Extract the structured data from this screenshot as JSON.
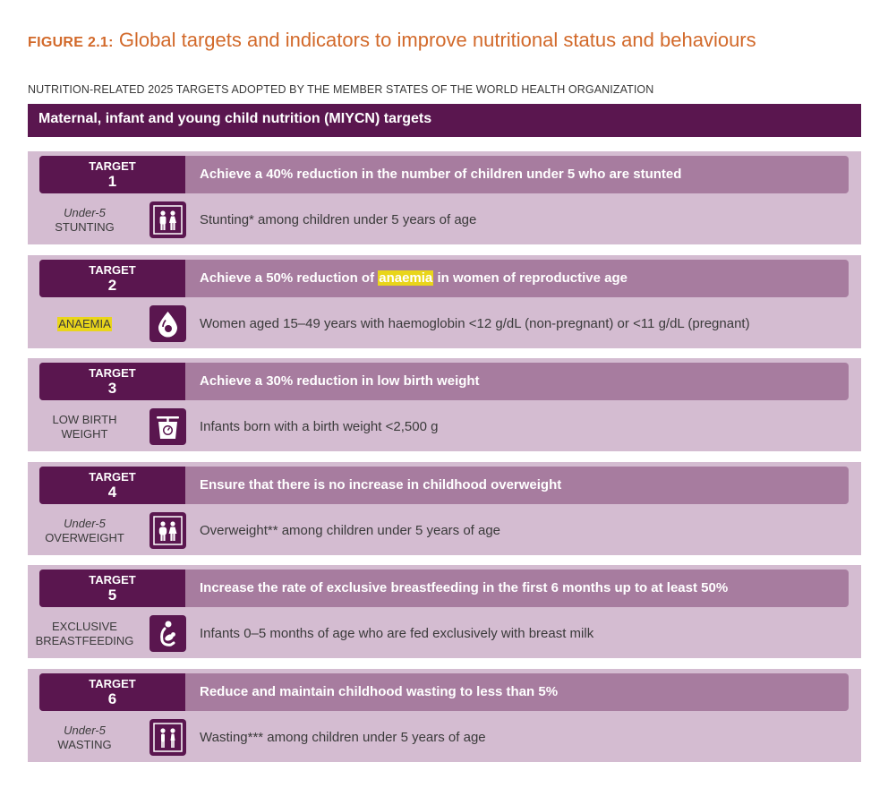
{
  "figure": {
    "number": "FIGURE 2.1:",
    "title": "Global targets and indicators to improve nutritional status and behaviours"
  },
  "subtitle": "NUTRITION-RELATED 2025 TARGETS ADOPTED BY THE MEMBER STATES OF THE WORLD HEALTH ORGANIZATION",
  "section_header": "Maternal, infant and young child nutrition (MIYCN) targets",
  "colors": {
    "title_orange": "#d2692a",
    "dark_purple": "#5a164f",
    "mid_purple": "#a77c9f",
    "light_purple": "#d4bcd1",
    "highlight_yellow": "#e9d51a"
  },
  "targets": [
    {
      "label": "TARGET",
      "number": "1",
      "goal": "Achieve a 40% reduction in the number of children under 5 who are stunted",
      "indicator_line1": "Under-5",
      "indicator_line2": "STUNTING",
      "icon": "children-icon",
      "indicator_text": "Stunting* among children under 5 years of age"
    },
    {
      "label": "TARGET",
      "number": "2",
      "goal_before": "Achieve a 50% reduction of ",
      "goal_highlight": "anaemia",
      "goal_after": " in women of reproductive age",
      "indicator_name": "ANAEMIA",
      "icon": "blood-drop-icon",
      "indicator_text": "Women aged 15–49 years with haemoglobin <12 g/dL (non-pregnant) or <11 g/dL (pregnant)"
    },
    {
      "label": "TARGET",
      "number": "3",
      "goal": "Achieve a 30% reduction in low birth weight",
      "indicator_line1": "LOW BIRTH",
      "indicator_line2": "WEIGHT",
      "icon": "scale-icon",
      "indicator_text": "Infants born with a birth weight <2,500 g"
    },
    {
      "label": "TARGET",
      "number": "4",
      "goal": "Ensure that there is no increase in childhood overweight",
      "indicator_line1": "Under-5",
      "indicator_line2": "OVERWEIGHT",
      "icon": "children-icon",
      "indicator_text": "Overweight** among children under 5 years of age"
    },
    {
      "label": "TARGET",
      "number": "5",
      "goal": "Increase the rate of exclusive breastfeeding in the first 6 months up to at least 50%",
      "indicator_line1": "EXCLUSIVE",
      "indicator_line2": "BREASTFEEDING",
      "icon": "breastfeeding-icon",
      "indicator_text": "Infants 0–5 months of age who are fed exclusively with breast milk"
    },
    {
      "label": "TARGET",
      "number": "6",
      "goal": "Reduce and maintain childhood wasting to less than 5%",
      "indicator_line1": "Under-5",
      "indicator_line2": "WASTING",
      "icon": "children-icon",
      "indicator_text": "Wasting*** among children under 5 years of age"
    }
  ]
}
